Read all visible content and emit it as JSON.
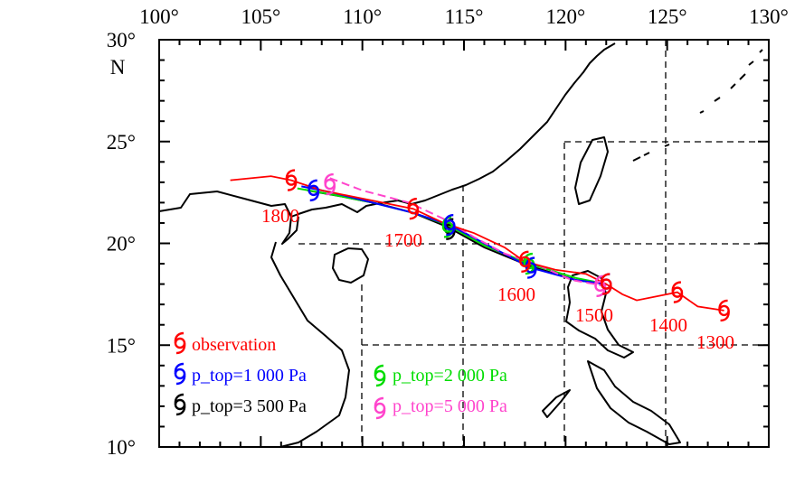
{
  "map": {
    "lon_ticks": [
      "100°",
      "105°",
      "110°",
      "115°",
      "120°",
      "125°",
      "130°"
    ],
    "lat_ticks": [
      "10°",
      "15°",
      "20°",
      "25°",
      "30°"
    ],
    "north_label": "N",
    "lon_range": [
      100,
      130
    ],
    "lat_range": [
      10,
      30
    ]
  },
  "colors": {
    "observation": "#ff0000",
    "p_top_1000": "#0000ff",
    "p_top_2000": "#00dd00",
    "p_top_3500": "#000000",
    "p_top_5000": "#ff44cc"
  },
  "legend": {
    "observation": "observation",
    "p_top_1000": "p_top=1 000 Pa",
    "p_top_2000": "p_top=2 000 Pa",
    "p_top_3500": "p_top=3 500 Pa",
    "p_top_5000": "p_top=5 000 Pa",
    "symbol": "typhoon-symbol"
  },
  "track_labels": [
    "1300",
    "1400",
    "1500",
    "1600",
    "1700",
    "1800"
  ],
  "tracks": {
    "observation": {
      "color": "#ff0000",
      "points": [
        [
          103.5,
          23.1
        ],
        [
          105.5,
          23.3
        ],
        [
          106.5,
          23.1
        ],
        [
          108.0,
          22.6
        ],
        [
          110.0,
          22.2
        ],
        [
          112.5,
          21.7
        ],
        [
          114.0,
          21.0
        ],
        [
          115.5,
          20.5
        ],
        [
          117.0,
          19.8
        ],
        [
          118.0,
          19.1
        ],
        [
          119.5,
          18.7
        ],
        [
          121.0,
          18.5
        ],
        [
          122.0,
          18.0
        ],
        [
          122.8,
          17.5
        ],
        [
          123.5,
          17.2
        ],
        [
          124.5,
          17.4
        ],
        [
          125.5,
          17.6
        ],
        [
          126.5,
          16.9
        ],
        [
          127.8,
          16.7
        ]
      ],
      "markers": [
        [
          127.8,
          16.7
        ],
        [
          125.5,
          17.6
        ],
        [
          122.0,
          18.0
        ],
        [
          118.0,
          19.1
        ],
        [
          112.5,
          21.7
        ],
        [
          106.5,
          23.1
        ]
      ]
    },
    "p_top_1000": {
      "color": "#0000ff",
      "points": [
        [
          107.0,
          22.8
        ],
        [
          108.5,
          22.5
        ],
        [
          110.5,
          22.0
        ],
        [
          112.5,
          21.5
        ],
        [
          114.3,
          20.9
        ],
        [
          116.0,
          20.0
        ],
        [
          118.3,
          18.8
        ],
        [
          120.5,
          18.2
        ],
        [
          122.0,
          18.0
        ]
      ],
      "markers": [
        [
          107.6,
          22.6
        ],
        [
          114.3,
          20.9
        ],
        [
          118.3,
          18.8
        ],
        [
          122.0,
          18.0
        ]
      ]
    },
    "p_top_2000": {
      "color": "#00dd00",
      "points": [
        [
          106.8,
          22.7
        ],
        [
          108.5,
          22.4
        ],
        [
          110.5,
          22.0
        ],
        [
          112.5,
          21.5
        ],
        [
          114.2,
          20.9
        ],
        [
          116.0,
          19.9
        ],
        [
          118.2,
          19.0
        ],
        [
          120.5,
          18.3
        ],
        [
          122.0,
          18.0
        ]
      ],
      "markers": [
        [
          114.2,
          20.8
        ],
        [
          118.2,
          19.0
        ]
      ]
    },
    "p_top_3500": {
      "color": "#000000",
      "points": [
        [
          107.3,
          22.6
        ],
        [
          109.0,
          22.3
        ],
        [
          111.0,
          21.9
        ],
        [
          112.5,
          21.5
        ],
        [
          114.2,
          20.8
        ],
        [
          116.0,
          19.8
        ],
        [
          118.2,
          18.9
        ],
        [
          120.5,
          18.2
        ],
        [
          122.0,
          18.0
        ]
      ],
      "markers": [
        [
          114.3,
          20.7
        ]
      ]
    },
    "p_top_5000": {
      "color": "#ff44cc",
      "points": [
        [
          108.4,
          23.2
        ],
        [
          110.0,
          22.6
        ],
        [
          112.3,
          22.0
        ],
        [
          114.0,
          21.2
        ],
        [
          115.5,
          20.3
        ],
        [
          117.0,
          19.5
        ],
        [
          118.5,
          19.0
        ],
        [
          120.3,
          18.2
        ],
        [
          122.0,
          17.9
        ]
      ],
      "markers": [
        [
          108.4,
          22.9
        ],
        [
          121.7,
          17.9
        ]
      ]
    }
  }
}
